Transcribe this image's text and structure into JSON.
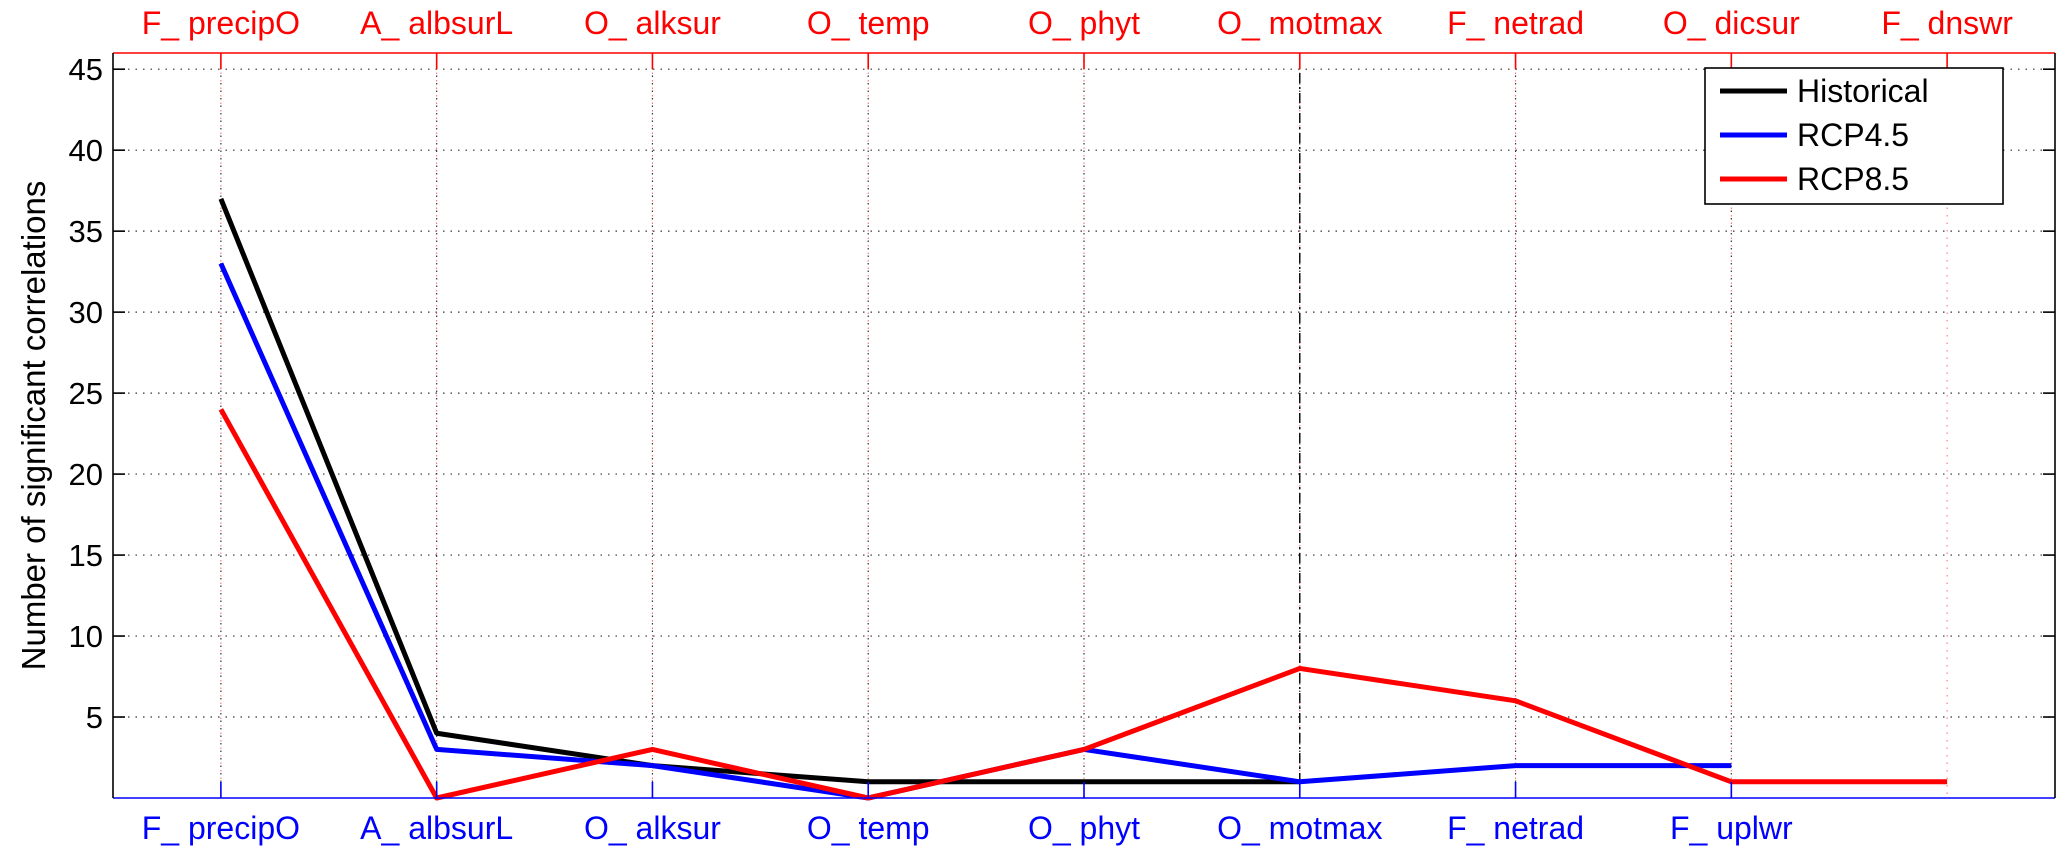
{
  "chart_data": {
    "type": "line",
    "ylabel": "Number of significant correlations",
    "yticks": [
      5,
      10,
      15,
      20,
      25,
      30,
      35,
      40,
      45
    ],
    "ylim": [
      0,
      46
    ],
    "xlim": [
      0.5,
      9.5
    ],
    "grid": true,
    "legend_position": "top-right",
    "top_axis": {
      "color": "#ff0000",
      "labels": [
        "F_ precipO",
        "A_ albsurL",
        "O_ alksur",
        "O_ temp",
        "O_ phyt",
        "O_ motmax",
        "F_ netrad",
        "O_ dicsur",
        "F_ dnswr"
      ]
    },
    "bottom_axis": {
      "color": "#0000ff",
      "labels": [
        "F_ precipO",
        "A_ albsurL",
        "O_ alksur",
        "O_ temp",
        "O_ phyt",
        "O_ motmax",
        "F_ netrad",
        "F_ uplwr"
      ]
    },
    "marker_line_x": 6,
    "series": [
      {
        "name": "Historical",
        "color": "#000000",
        "x": [
          1,
          2,
          3,
          4,
          5,
          6
        ],
        "values": [
          37,
          4,
          2,
          1,
          1,
          1
        ]
      },
      {
        "name": "RCP4.5",
        "color": "#0000ff",
        "x": [
          1,
          2,
          3,
          4,
          5,
          6,
          7,
          8
        ],
        "values": [
          33,
          3,
          2,
          0,
          3,
          1,
          2,
          2
        ]
      },
      {
        "name": "RCP8.5",
        "color": "#ff0000",
        "x": [
          1,
          2,
          3,
          4,
          5,
          6,
          7,
          8,
          9
        ],
        "values": [
          24,
          0,
          3,
          0,
          3,
          8,
          6,
          1,
          1
        ]
      }
    ]
  }
}
